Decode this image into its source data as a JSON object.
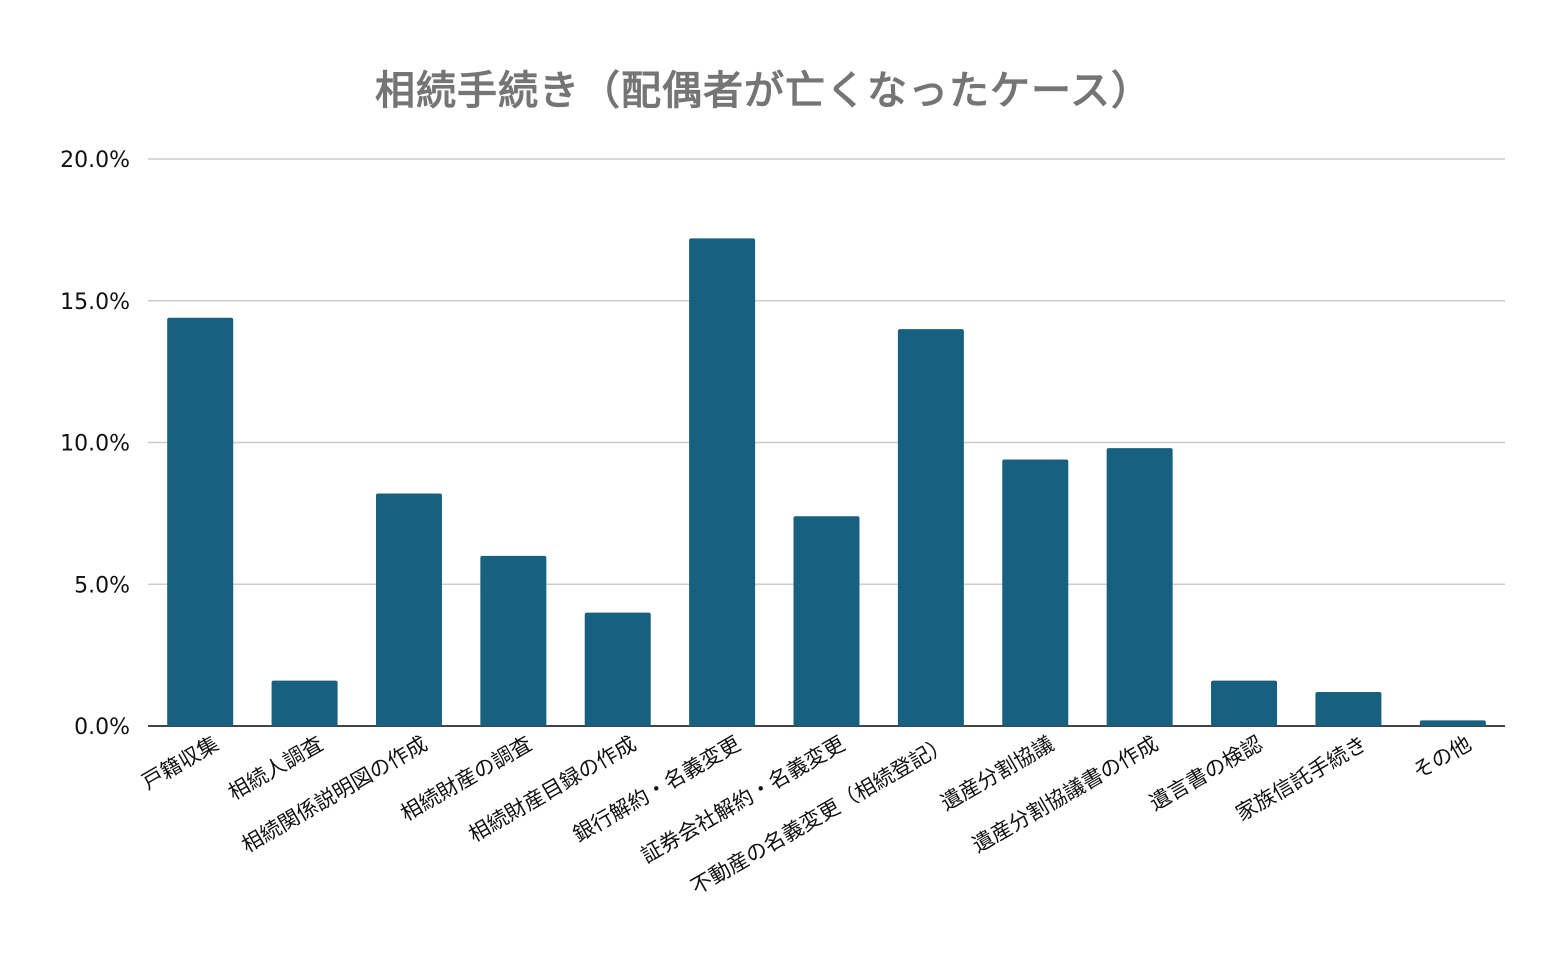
{
  "chart_data": {
    "type": "bar",
    "title": "相続手続き（配偶者が亡くなったケース）",
    "xlabel": "",
    "ylabel": "",
    "ylim": [
      0,
      20
    ],
    "yticks": [
      "0.0%",
      "5.0%",
      "10.0%",
      "15.0%",
      "20.0%"
    ],
    "grid": true,
    "bar_color": "#18607f",
    "categories": [
      "戸籍収集",
      "相続人調査",
      "相続関係説明図の作成",
      "相続財産の調査",
      "相続財産目録の作成",
      "銀行解約・名義変更",
      "証券会社解約・名義変更",
      "不動産の名義変更（相続登記）",
      "遺産分割協議",
      "遺産分割協議書の作成",
      "遺言書の検認",
      "家族信託手続き",
      "その他"
    ],
    "values": [
      14.4,
      1.6,
      8.2,
      6.0,
      4.0,
      17.2,
      7.4,
      14.0,
      9.4,
      9.8,
      1.6,
      1.2,
      0.2
    ]
  }
}
